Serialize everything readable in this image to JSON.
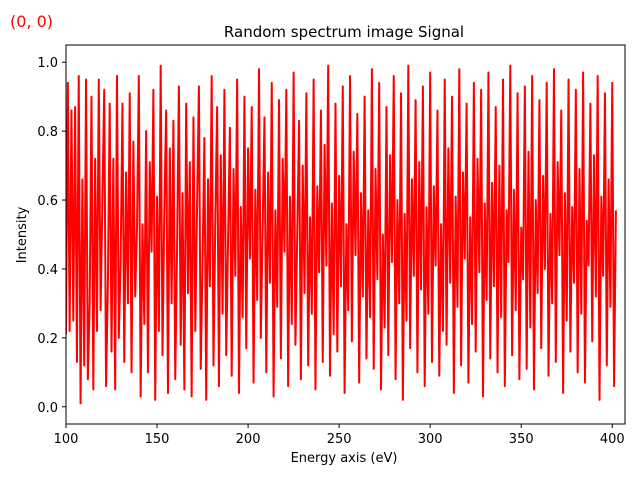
{
  "corner_label": "(0, 0)",
  "colors": {
    "line": "#ff0000",
    "corner_label": "#ff0000",
    "axes": "#000000"
  },
  "chart_data": {
    "type": "line",
    "title": "Random spectrum image Signal",
    "xlabel": "Energy axis (eV)",
    "ylabel": "Intensity",
    "xlim": [
      100,
      407
    ],
    "ylim": [
      -0.05,
      1.05
    ],
    "x_ticks": [
      100,
      150,
      200,
      250,
      300,
      350,
      400
    ],
    "y_ticks": [
      0.0,
      0.2,
      0.4,
      0.6,
      0.8,
      1.0
    ],
    "x_tick_labels": [
      "100",
      "150",
      "200",
      "250",
      "300",
      "350",
      "400"
    ],
    "y_tick_labels": [
      "0.0",
      "0.2",
      "0.4",
      "0.6",
      "0.8",
      "1.0"
    ],
    "grid": false,
    "legend": "none",
    "series": [
      {
        "x_start": 100,
        "x_step": 1,
        "values": [
          0.21,
          0.94,
          0.22,
          0.86,
          0.25,
          0.87,
          0.13,
          0.96,
          0.01,
          0.66,
          0.12,
          0.95,
          0.08,
          0.3,
          0.9,
          0.05,
          0.72,
          0.22,
          0.95,
          0.28,
          0.6,
          0.92,
          0.06,
          0.35,
          0.88,
          0.16,
          0.72,
          0.05,
          0.96,
          0.2,
          0.42,
          0.88,
          0.13,
          0.68,
          0.3,
          0.91,
          0.1,
          0.77,
          0.32,
          0.52,
          0.96,
          0.03,
          0.53,
          0.24,
          0.8,
          0.1,
          0.71,
          0.45,
          0.92,
          0.02,
          0.61,
          0.22,
          0.99,
          0.15,
          0.57,
          0.86,
          0.04,
          0.75,
          0.3,
          0.83,
          0.08,
          0.46,
          0.93,
          0.18,
          0.62,
          0.05,
          0.88,
          0.33,
          0.71,
          0.03,
          0.84,
          0.22,
          0.59,
          0.93,
          0.11,
          0.42,
          0.78,
          0.02,
          0.66,
          0.35,
          0.96,
          0.12,
          0.54,
          0.87,
          0.06,
          0.73,
          0.27,
          0.92,
          0.15,
          0.48,
          0.81,
          0.09,
          0.69,
          0.38,
          0.95,
          0.04,
          0.58,
          0.26,
          0.9,
          0.17,
          0.75,
          0.43,
          0.87,
          0.07,
          0.63,
          0.31,
          0.98,
          0.2,
          0.52,
          0.84,
          0.1,
          0.68,
          0.36,
          0.94,
          0.03,
          0.57,
          0.29,
          0.89,
          0.14,
          0.72,
          0.45,
          0.92,
          0.06,
          0.61,
          0.24,
          0.97,
          0.18,
          0.5,
          0.83,
          0.08,
          0.7,
          0.33,
          0.91,
          0.12,
          0.55,
          0.27,
          0.95,
          0.05,
          0.64,
          0.39,
          0.86,
          0.13,
          0.76,
          0.41,
          0.99,
          0.09,
          0.59,
          0.21,
          0.88,
          0.16,
          0.67,
          0.35,
          0.93,
          0.04,
          0.53,
          0.28,
          0.96,
          0.19,
          0.74,
          0.44,
          0.85,
          0.07,
          0.62,
          0.32,
          0.9,
          0.14,
          0.57,
          0.26,
          0.98,
          0.11,
          0.69,
          0.37,
          0.94,
          0.05,
          0.5,
          0.23,
          0.87,
          0.15,
          0.73,
          0.42,
          0.96,
          0.08,
          0.6,
          0.3,
          0.91,
          0.02,
          0.56,
          0.25,
          0.99,
          0.17,
          0.66,
          0.38,
          0.89,
          0.1,
          0.71,
          0.34,
          0.93,
          0.06,
          0.58,
          0.27,
          0.97,
          0.13,
          0.64,
          0.41,
          0.86,
          0.09,
          0.53,
          0.22,
          0.95,
          0.18,
          0.75,
          0.36,
          0.9,
          0.04,
          0.61,
          0.29,
          0.98,
          0.12,
          0.68,
          0.43,
          0.88,
          0.07,
          0.55,
          0.24,
          0.94,
          0.16,
          0.72,
          0.39,
          0.92,
          0.03,
          0.59,
          0.31,
          0.97,
          0.14,
          0.65,
          0.35,
          0.87,
          0.1,
          0.7,
          0.26,
          0.95,
          0.06,
          0.57,
          0.42,
          0.99,
          0.15,
          0.63,
          0.28,
          0.91,
          0.08,
          0.52,
          0.37,
          0.93,
          0.11,
          0.74,
          0.23,
          0.96,
          0.05,
          0.6,
          0.33,
          0.89,
          0.17,
          0.67,
          0.4,
          0.94,
          0.09,
          0.56,
          0.3,
          0.98,
          0.13,
          0.71,
          0.44,
          0.86,
          0.04,
          0.62,
          0.25,
          0.95,
          0.16,
          0.58,
          0.36,
          0.92,
          0.1,
          0.69,
          0.27,
          0.97,
          0.07,
          0.54,
          0.41,
          0.88,
          0.19,
          0.73,
          0.32,
          0.96,
          0.02,
          0.61,
          0.38,
          0.91,
          0.12,
          0.66,
          0.29,
          0.94,
          0.06,
          0.57
        ]
      }
    ]
  }
}
